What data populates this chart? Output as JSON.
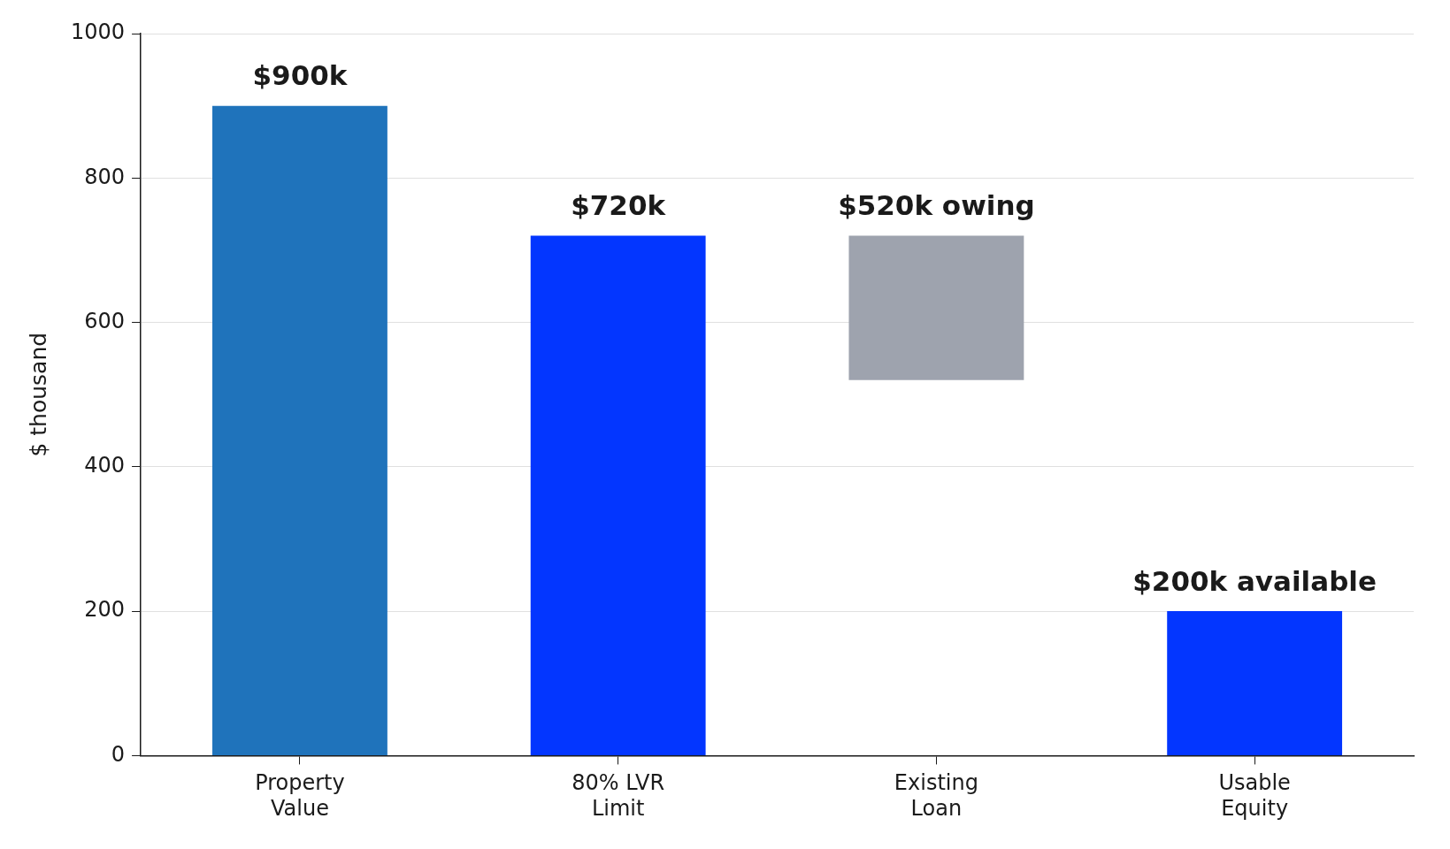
{
  "chart_data": {
    "type": "bar",
    "ylabel": "$ thousand",
    "categories": [
      "Property\nValue",
      "80% LVR\nLimit",
      "Existing\nLoan",
      "Usable\nEquity"
    ],
    "values": [
      900,
      720,
      200,
      200
    ],
    "base": [
      0,
      0,
      520,
      0
    ],
    "colors": [
      "#1f73bb",
      "#0336ff",
      "#9ea3ae",
      "#0336ff"
    ],
    "value_labels": [
      "$900k",
      "$720k",
      null,
      "$200k available"
    ],
    "annotations": [
      {
        "text": "$520k owing",
        "x": "Existing\nLoan",
        "y": 720
      }
    ],
    "ylim": [
      0,
      1000
    ],
    "yticks": [
      0,
      200,
      400,
      600,
      800,
      1000
    ],
    "grid": "y",
    "legend": false
  }
}
